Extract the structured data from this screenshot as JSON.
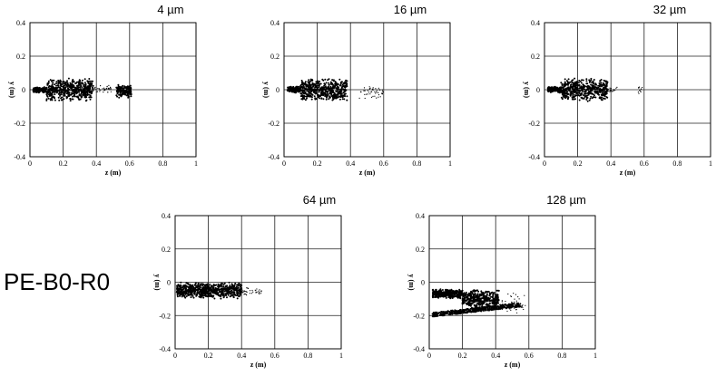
{
  "figure_label": "PE-B0-R0",
  "chart_data": [
    {
      "type": "scatter",
      "title": "4 µm",
      "xlabel": "z (m)",
      "ylabel": "y (m)",
      "xlim": [
        0,
        1
      ],
      "ylim": [
        -0.4,
        0.4
      ],
      "xticks": [
        "0",
        "0.2",
        "0.4",
        "0.6",
        "0.8",
        "1"
      ],
      "yticks": [
        "0.4",
        "0.2",
        "0",
        "-0.2",
        "-0.4"
      ],
      "grid": true,
      "clusters": [
        {
          "z": [
            0.02,
            0.1
          ],
          "y": [
            -0.02,
            0.02
          ],
          "density": "dense"
        },
        {
          "z": [
            0.1,
            0.38
          ],
          "y": [
            -0.07,
            0.07
          ],
          "density": "dense"
        },
        {
          "z": [
            0.38,
            0.5
          ],
          "y": [
            -0.02,
            0.03
          ],
          "density": "sparse"
        },
        {
          "z": [
            0.52,
            0.61
          ],
          "y": [
            -0.05,
            0.03
          ],
          "density": "dense"
        }
      ]
    },
    {
      "type": "scatter",
      "title": "16 µm",
      "xlabel": "z (m)",
      "ylabel": "y (m)",
      "xlim": [
        0,
        1
      ],
      "ylim": [
        -0.4,
        0.4
      ],
      "xticks": [
        "0",
        "0.2",
        "0.4",
        "0.6",
        "0.8",
        "1"
      ],
      "yticks": [
        "0.4",
        "0.2",
        "0",
        "-0.2",
        "-0.4"
      ],
      "grid": true,
      "clusters": [
        {
          "z": [
            0.02,
            0.1
          ],
          "y": [
            -0.02,
            0.02
          ],
          "density": "dense"
        },
        {
          "z": [
            0.1,
            0.38
          ],
          "y": [
            -0.07,
            0.07
          ],
          "density": "dense"
        },
        {
          "z": [
            0.45,
            0.6
          ],
          "y": [
            -0.06,
            0.03
          ],
          "density": "sparse"
        }
      ]
    },
    {
      "type": "scatter",
      "title": "32 µm",
      "xlabel": "z (m)",
      "ylabel": "y (m)",
      "xlim": [
        0,
        1
      ],
      "ylim": [
        -0.4,
        0.4
      ],
      "xticks": [
        "0",
        "0.2",
        "0.4",
        "0.6",
        "0.8",
        "1"
      ],
      "yticks": [
        "0.4",
        "0.2",
        "0",
        "-0.2",
        "-0.4"
      ],
      "grid": true,
      "clusters": [
        {
          "z": [
            0.02,
            0.1
          ],
          "y": [
            -0.02,
            0.02
          ],
          "density": "dense"
        },
        {
          "z": [
            0.1,
            0.38
          ],
          "y": [
            -0.07,
            0.07
          ],
          "density": "dense"
        },
        {
          "z": [
            0.38,
            0.44
          ],
          "y": [
            -0.02,
            0.02
          ],
          "density": "sparse"
        },
        {
          "z": [
            0.56,
            0.59
          ],
          "y": [
            -0.03,
            0.03
          ],
          "density": "sparse"
        }
      ]
    },
    {
      "type": "scatter",
      "title": "64 µm",
      "xlabel": "z (m)",
      "ylabel": "y (m)",
      "xlim": [
        0,
        1
      ],
      "ylim": [
        -0.4,
        0.4
      ],
      "xticks": [
        "0",
        "0.2",
        "0.4",
        "0.6",
        "0.8",
        "1"
      ],
      "yticks": [
        "0.4",
        "0.2",
        "0",
        "-0.2",
        "-0.4"
      ],
      "grid": true,
      "clusters": [
        {
          "z": [
            0.01,
            0.4
          ],
          "y": [
            -0.1,
            0.0
          ],
          "density": "dense"
        },
        {
          "z": [
            0.4,
            0.52
          ],
          "y": [
            -0.08,
            -0.03
          ],
          "density": "sparse"
        }
      ]
    },
    {
      "type": "scatter",
      "title": "128 µm",
      "xlabel": "z (m)",
      "ylabel": "y (m)",
      "xlim": [
        0,
        1
      ],
      "ylim": [
        -0.4,
        0.4
      ],
      "xticks": [
        "0",
        "0.2",
        "0.4",
        "0.6",
        "0.8",
        "1"
      ],
      "yticks": [
        "0.4",
        "0.2",
        "0",
        "-0.2",
        "-0.4"
      ],
      "grid": true,
      "clusters": [
        {
          "z": [
            0.02,
            0.2
          ],
          "y": [
            -0.1,
            -0.04
          ],
          "density": "dense"
        },
        {
          "z": [
            0.2,
            0.42
          ],
          "y": [
            -0.16,
            -0.04
          ],
          "density": "dense"
        },
        {
          "z": [
            0.42,
            0.58
          ],
          "y": [
            -0.2,
            -0.05
          ],
          "density": "sparse"
        },
        {
          "z": [
            0.02,
            0.55
          ],
          "y": [
            -0.21,
            -0.12
          ],
          "density": "band"
        }
      ]
    }
  ]
}
